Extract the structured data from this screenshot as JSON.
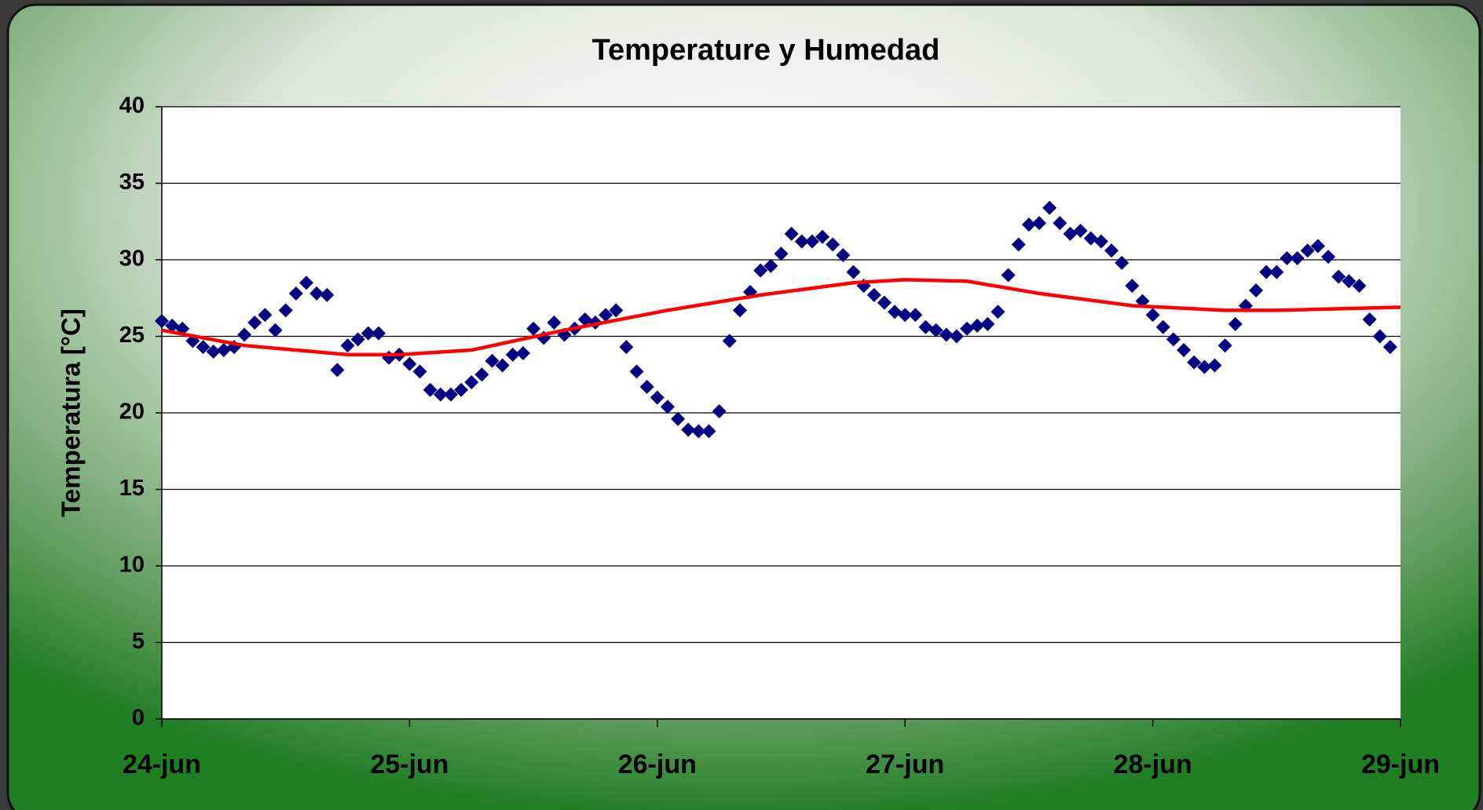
{
  "chart_data": {
    "type": "scatter",
    "title": "Temperature y Humedad",
    "y_label": "Temperatura [°C]",
    "xlim": [
      0,
      120
    ],
    "xticks": [
      {
        "value": 0,
        "label": "24-jun"
      },
      {
        "value": 24,
        "label": "25-jun"
      },
      {
        "value": 48,
        "label": "26-jun"
      },
      {
        "value": 72,
        "label": "27-jun"
      },
      {
        "value": 96,
        "label": "28-jun"
      },
      {
        "value": 120,
        "label": "29-jun"
      }
    ],
    "ylim": [
      0,
      40
    ],
    "yticks": [
      0,
      5,
      10,
      15,
      20,
      25,
      30,
      35,
      40
    ],
    "grid": true,
    "series": [
      {
        "kind": "marker",
        "color": "#000080",
        "x": [
          0,
          1,
          2,
          3,
          4,
          5,
          6,
          7,
          8,
          9,
          10,
          11,
          12,
          13,
          14,
          15,
          16,
          17,
          18,
          19,
          20,
          21,
          22,
          23,
          24,
          25,
          26,
          27,
          28,
          29,
          30,
          31,
          32,
          33,
          34,
          35,
          36,
          37,
          38,
          39,
          40,
          41,
          42,
          43,
          44,
          45,
          46,
          47,
          48,
          49,
          50,
          51,
          52,
          53,
          54,
          55,
          56,
          57,
          58,
          59,
          60,
          61,
          62,
          63,
          64,
          65,
          66,
          67,
          68,
          69,
          70,
          71,
          72,
          73,
          74,
          75,
          76,
          77,
          78,
          79,
          80,
          81,
          82,
          83,
          84,
          85,
          86,
          87,
          88,
          89,
          90,
          91,
          92,
          93,
          94,
          95,
          96,
          97,
          98,
          99,
          100,
          101,
          102,
          103,
          104,
          105,
          106,
          107,
          108,
          109,
          110,
          111,
          112,
          113,
          114,
          115,
          116,
          117,
          118,
          119
        ],
        "values": [
          26.0,
          25.7,
          25.5,
          24.7,
          24.3,
          24.0,
          24.1,
          24.3,
          25.1,
          25.9,
          26.4,
          25.4,
          26.7,
          27.8,
          28.5,
          27.8,
          27.7,
          22.8,
          24.4,
          24.8,
          25.2,
          25.2,
          23.6,
          23.8,
          23.2,
          22.7,
          21.5,
          21.2,
          21.2,
          21.5,
          22.0,
          22.5,
          23.4,
          23.1,
          23.8,
          23.9,
          25.5,
          24.9,
          25.9,
          25.1,
          25.5,
          26.1,
          25.9,
          26.4,
          26.7,
          24.3,
          22.7,
          21.7,
          21.0,
          20.4,
          19.6,
          18.9,
          18.8,
          18.8,
          20.1,
          24.7,
          26.7,
          27.9,
          29.3,
          29.6,
          30.4,
          31.7,
          31.2,
          31.2,
          31.5,
          31.0,
          30.3,
          29.2,
          28.3,
          27.7,
          27.2,
          26.6,
          26.4,
          26.4,
          25.6,
          25.4,
          25.1,
          25.0,
          25.5,
          25.7,
          25.8,
          26.6,
          29.0,
          31.0,
          32.3,
          32.4,
          33.4,
          32.4,
          31.7,
          31.9,
          31.4,
          31.2,
          30.6,
          29.8,
          28.3,
          27.3,
          26.4,
          25.6,
          24.8,
          24.1,
          23.3,
          23.0,
          23.1,
          24.4,
          25.8,
          27.0,
          28.0,
          29.2,
          29.2,
          30.1,
          30.1,
          30.6,
          30.9,
          30.2,
          28.9,
          28.6,
          28.3,
          26.1,
          25.0,
          24.3
        ]
      },
      {
        "kind": "line",
        "color": "#ff0000",
        "x": [
          0,
          8,
          18,
          23,
          30,
          39,
          49,
          58,
          67,
          72,
          78,
          85,
          94,
          103,
          108,
          120
        ],
        "values": [
          25.4,
          24.4,
          23.8,
          23.8,
          24.1,
          25.4,
          26.7,
          27.7,
          28.5,
          28.7,
          28.6,
          27.8,
          27.0,
          26.7,
          26.7,
          26.9
        ]
      }
    ]
  }
}
